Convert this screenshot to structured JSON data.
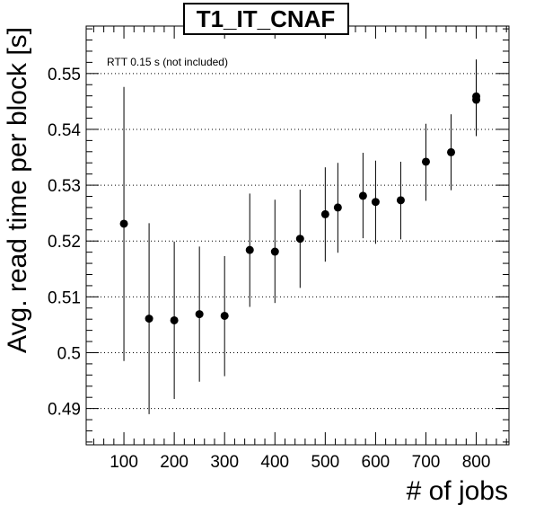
{
  "chart_data": {
    "type": "scatter",
    "title": "T1_IT_CNAF",
    "xlabel": "# of jobs",
    "ylabel": "Avg. read time per block [s]",
    "annotation": "RTT 0.15 s (not included)",
    "xlim": [
      25,
      865
    ],
    "ylim": [
      0.4835,
      0.5585
    ],
    "xticks": [
      100,
      200,
      300,
      400,
      500,
      600,
      700,
      800
    ],
    "xtick_labels": [
      "100",
      "200",
      "300",
      "400",
      "500",
      "600",
      "700",
      "800"
    ],
    "yticks": [
      0.49,
      0.5,
      0.51,
      0.52,
      0.53,
      0.54,
      0.55
    ],
    "ytick_labels": [
      "0.49",
      "0.5",
      "0.51",
      "0.52",
      "0.53",
      "0.54",
      "0.55"
    ],
    "grid": "horizontal-dotted",
    "series": [
      {
        "x": [
          100,
          150,
          200,
          250,
          300,
          350,
          400,
          450,
          500,
          525,
          575,
          600,
          650,
          700,
          750,
          800,
          800
        ],
        "y": [
          0.5231,
          0.5061,
          0.5058,
          0.5069,
          0.5066,
          0.5184,
          0.5181,
          0.5204,
          0.5248,
          0.526,
          0.5281,
          0.527,
          0.5273,
          0.5342,
          0.5359,
          0.5459,
          0.5453
        ],
        "y_low": [
          0.4985,
          0.489,
          0.4917,
          0.4948,
          0.4958,
          0.5082,
          0.5089,
          0.5116,
          0.5163,
          0.5179,
          0.5205,
          0.5195,
          0.5203,
          0.5272,
          0.5291,
          0.5388,
          0.5388
        ],
        "y_high": [
          0.5476,
          0.5232,
          0.5199,
          0.519,
          0.5173,
          0.5285,
          0.5274,
          0.5292,
          0.5332,
          0.534,
          0.5358,
          0.5344,
          0.5342,
          0.541,
          0.5427,
          0.5525,
          0.5525
        ]
      }
    ]
  }
}
